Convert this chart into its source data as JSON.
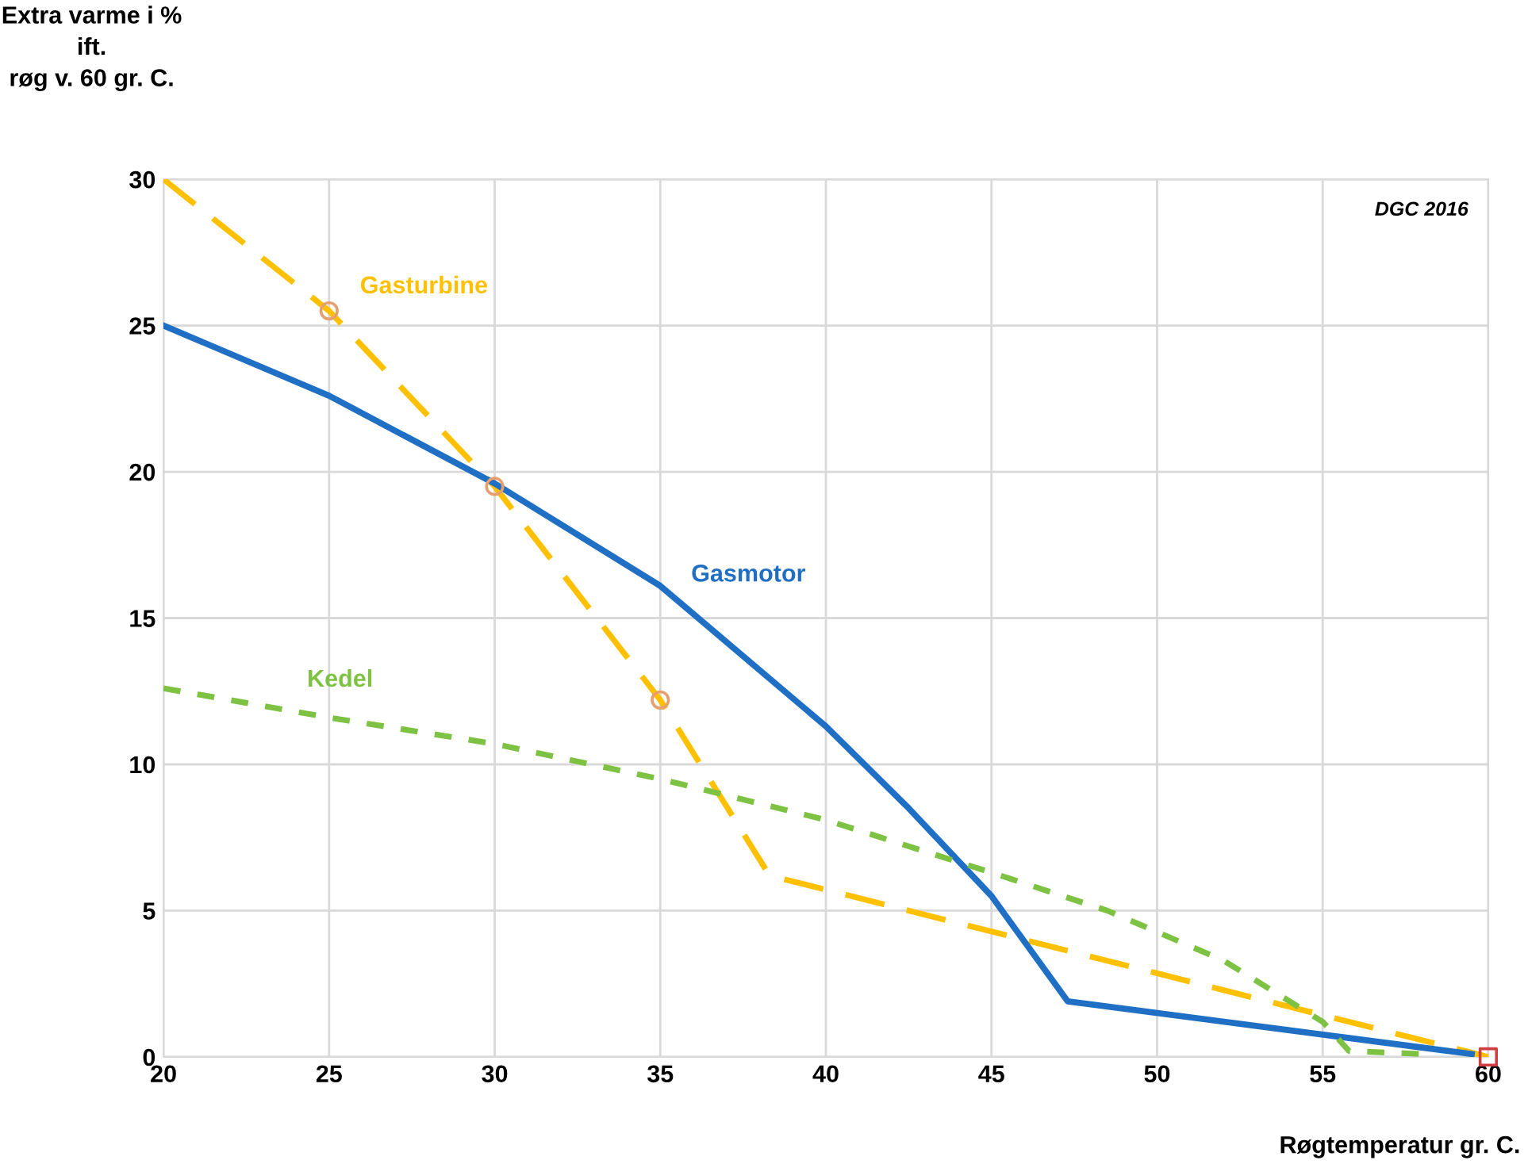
{
  "chart_data": {
    "type": "line",
    "ylabel": "Extra varme i %\nift.\nrøg v. 60 gr. C.",
    "xlabel": "Røgtemperatur gr. C.",
    "xlim": [
      20,
      60
    ],
    "ylim": [
      0,
      30
    ],
    "xticks": [
      20,
      25,
      30,
      35,
      40,
      45,
      50,
      55,
      60
    ],
    "yticks": [
      0,
      5,
      10,
      15,
      20,
      25,
      30
    ],
    "grid": true,
    "legend": false,
    "annotations": [
      "DGC 2016"
    ],
    "series": [
      {
        "name": "Gasturbine",
        "color": "#ffc000",
        "line_style": "dashed",
        "marker": "none",
        "x": [
          20,
          25,
          30,
          35,
          38.3,
          60
        ],
        "values": [
          30,
          25.5,
          19.5,
          12.2,
          6.2,
          0
        ]
      },
      {
        "name": "Gasmotor",
        "color": "#1f6fc5",
        "line_style": "solid",
        "marker": "none",
        "x": [
          20,
          25,
          30,
          35,
          40,
          42.5,
          45,
          47.3,
          59.5
        ],
        "values": [
          25,
          22.6,
          19.6,
          16.1,
          11.3,
          8.5,
          5.5,
          1.9,
          0.1
        ]
      },
      {
        "name": "Kedel",
        "color": "#7dc242",
        "line_style": "dotted",
        "marker": "none",
        "x": [
          20,
          25,
          30,
          35,
          40,
          45,
          48.5,
          52,
          55,
          55.8,
          58
        ],
        "values": [
          12.6,
          11.6,
          10.7,
          9.5,
          8.1,
          6.3,
          5.0,
          3.3,
          1.2,
          0.2,
          0.1
        ]
      },
      {
        "type": "scatter",
        "color": "#e6a070",
        "marker": "circle",
        "x": [
          25,
          30,
          35
        ],
        "values": [
          25.5,
          19.5,
          12.2
        ]
      },
      {
        "type": "scatter",
        "color": "#d04040",
        "marker": "square",
        "x": [
          60
        ],
        "values": [
          0
        ]
      }
    ]
  }
}
